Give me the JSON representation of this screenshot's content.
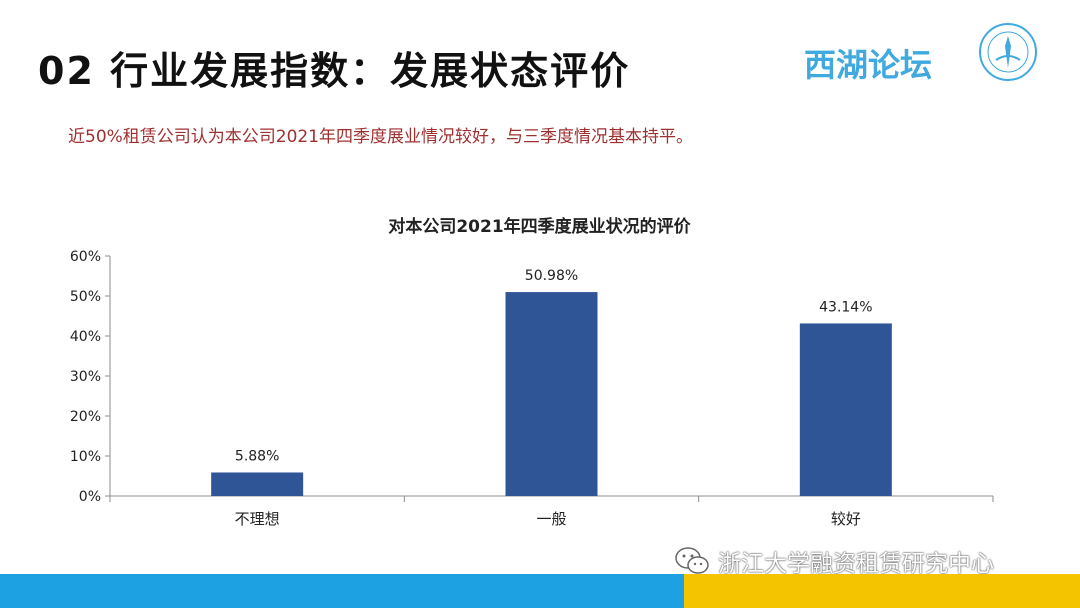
{
  "slide": {
    "title": "02 行业发展指数：发展状态评价",
    "brand": "西湖论坛",
    "subtitle": "近50%租赁公司认为本公司2021年四季度展业情况较好，与三季度情况基本持平。"
  },
  "watermark": {
    "text": "浙江大学融资租赁研究中心",
    "icon": "wechat-icon"
  },
  "colors": {
    "bar": "#2F5597",
    "subtitle": "#A03030",
    "brand": "#3FA9E0",
    "strip_blue": "#1DA1E2",
    "strip_yellow": "#F5C400"
  },
  "chart_data": {
    "type": "bar",
    "title": "对本公司2021年四季度展业状况的评价",
    "categories": [
      "不理想",
      "一般",
      "较好"
    ],
    "values": [
      5.88,
      50.98,
      43.14
    ],
    "data_labels": [
      "5.88%",
      "50.98%",
      "43.14%"
    ],
    "y_ticks": [
      "0%",
      "10%",
      "20%",
      "30%",
      "40%",
      "50%",
      "60%"
    ],
    "ylim": [
      0,
      60
    ],
    "xlabel": "",
    "ylabel": "",
    "grid": false,
    "legend": "none"
  }
}
